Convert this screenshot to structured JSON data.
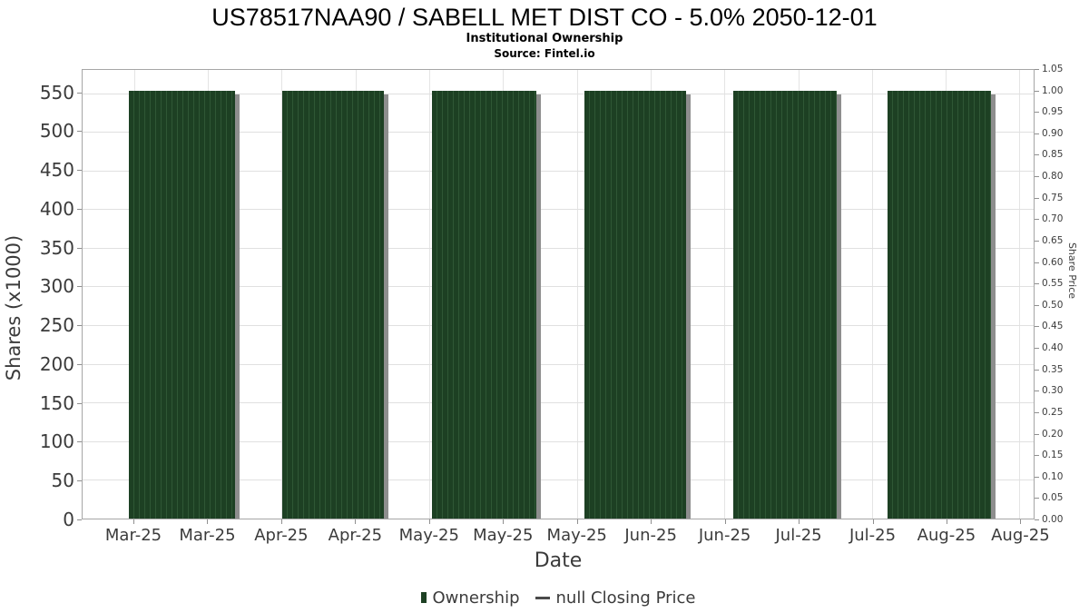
{
  "header": {
    "title": "US78517NAA90 / SABELL MET DIST CO - 5.0% 2050-12-01",
    "subtitle": "Institutional Ownership",
    "source": "Source: Fintel.io"
  },
  "chart_data": {
    "type": "bar",
    "title": "US78517NAA90 / SABELL MET DIST CO - 5.0% 2050-12-01",
    "subtitle": "Institutional Ownership",
    "source": "Source: Fintel.io",
    "xlabel": "Date",
    "ylabel_left": "Shares (x1000)",
    "ylabel_right": "Share Price",
    "legend": [
      {
        "label": "Ownership",
        "marker": "bar-swatch",
        "color": "#1d4023"
      },
      {
        "label": "null Closing Price",
        "marker": "line-swatch",
        "color": "#4a4a4a"
      }
    ],
    "x_tick_labels": [
      "Mar-25",
      "Mar-25",
      "Apr-25",
      "Apr-25",
      "May-25",
      "May-25",
      "May-25",
      "Jun-25",
      "Jun-25",
      "Jul-25",
      "Jul-25",
      "Aug-25",
      "Aug-25"
    ],
    "left_axis": {
      "ticks": [
        0,
        50,
        100,
        150,
        200,
        250,
        300,
        350,
        400,
        450,
        500,
        550
      ],
      "max": 580,
      "gridlines": true
    },
    "right_axis": {
      "ticks": [
        "0.00",
        "0.05",
        "0.10",
        "0.15",
        "0.20",
        "0.25",
        "0.30",
        "0.35",
        "0.40",
        "0.45",
        "0.50",
        "0.55",
        "0.60",
        "0.65",
        "0.70",
        "0.75",
        "0.80",
        "0.85",
        "0.90",
        "0.95",
        "1.00",
        "1.05"
      ],
      "max": 1.05
    },
    "x_grid": {
      "first_pct": 5.43,
      "step_pct": 7.757,
      "count": 13
    },
    "series": [
      {
        "name": "Ownership",
        "type": "bar",
        "color": "#1d4023",
        "stripe_color": "#2f5735",
        "shadow_color": "#8e8e8e",
        "groups": [
          {
            "month": "Mar-25",
            "value": 553.5,
            "x_pct": 4.9,
            "w_pct": 11.1
          },
          {
            "month": "Apr-25",
            "value": 553.5,
            "x_pct": 21.0,
            "w_pct": 10.7
          },
          {
            "month": "May-25",
            "value": 553.5,
            "x_pct": 36.7,
            "w_pct": 11.0
          },
          {
            "month": "Jun-25",
            "value": 553.5,
            "x_pct": 52.8,
            "w_pct": 10.7
          },
          {
            "month": "Jul-25",
            "value": 553.5,
            "x_pct": 68.4,
            "w_pct": 10.9
          },
          {
            "month": "Aug-25",
            "value": 553.5,
            "x_pct": 84.6,
            "w_pct": 10.9
          }
        ]
      },
      {
        "name": "null Closing Price",
        "type": "line",
        "color": "#4a4a4a",
        "values": []
      }
    ]
  }
}
